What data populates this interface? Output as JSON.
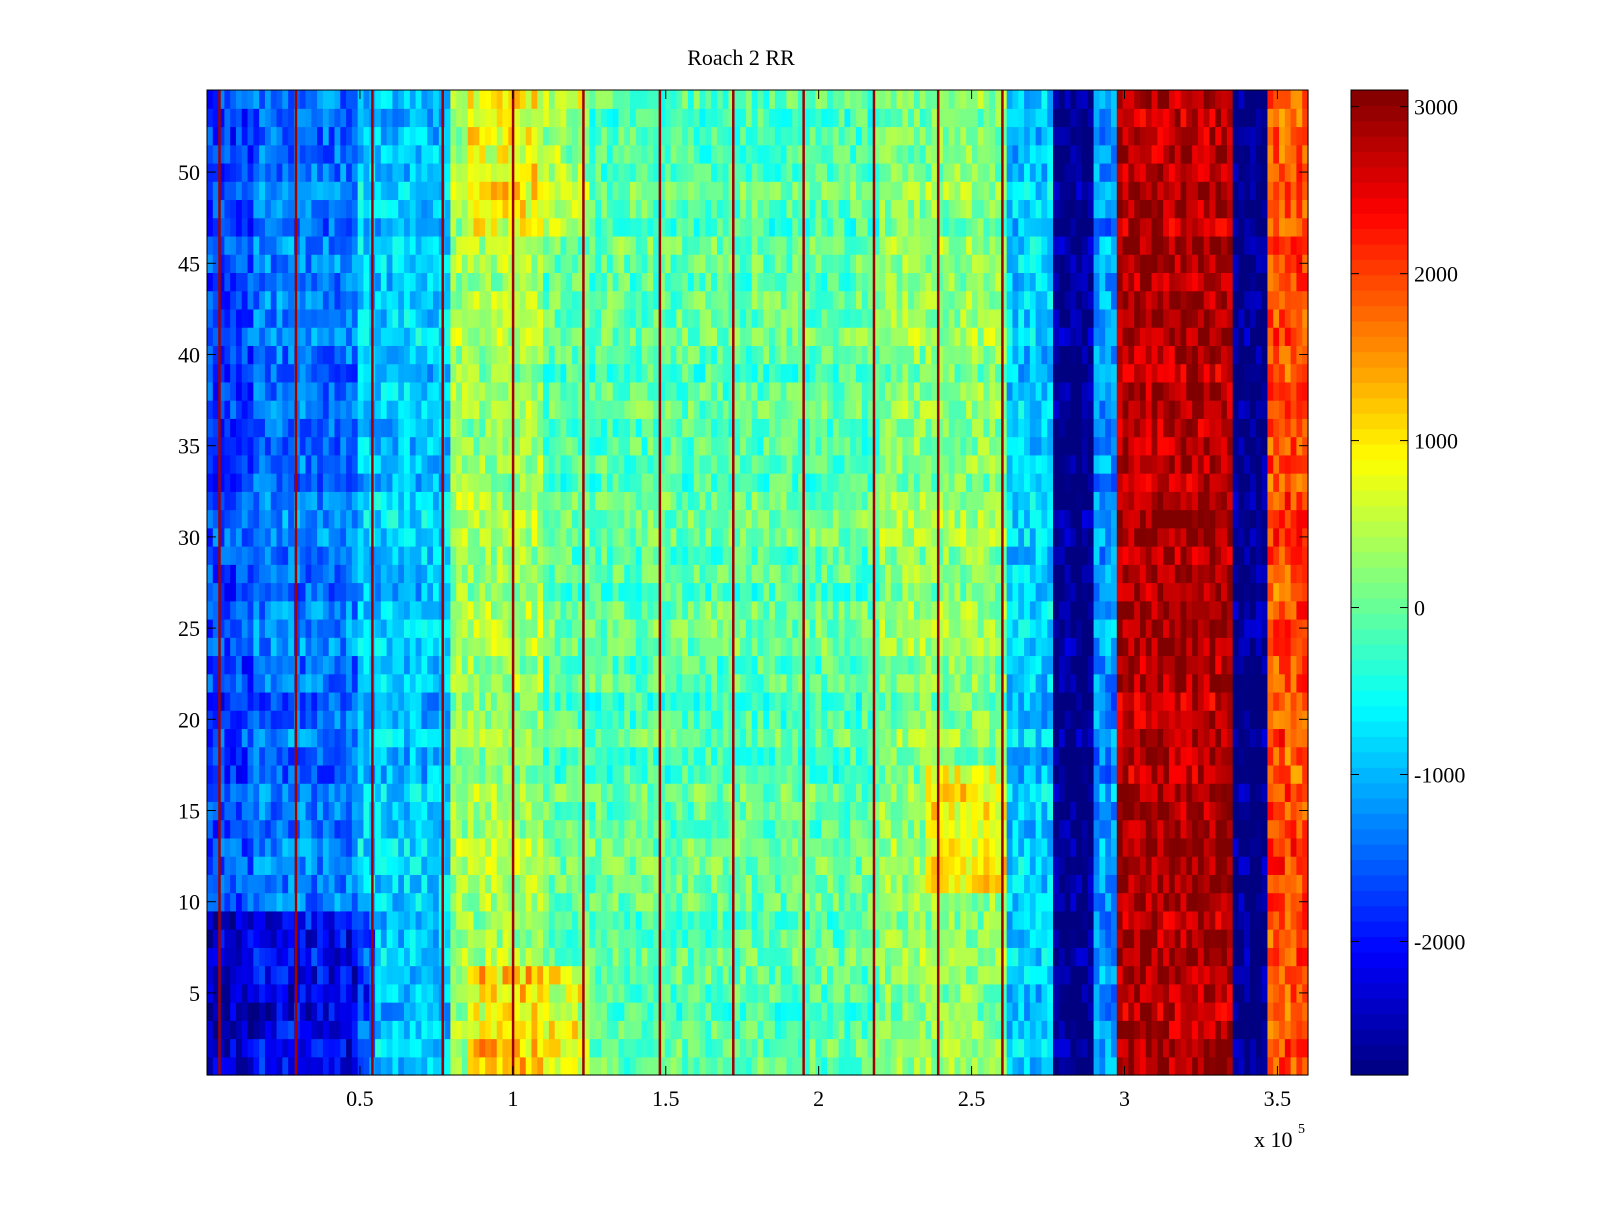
{
  "chart_data": {
    "type": "heatmap",
    "title": "Roach 2 RR",
    "xlabel": "",
    "ylabel": "",
    "x_multiplier_label": "x 10",
    "x_multiplier_exponent": "5",
    "xlim": [
      0,
      360000
    ],
    "ylim": [
      0.5,
      54.5
    ],
    "x_ticks": [
      50000,
      100000,
      150000,
      200000,
      250000,
      300000,
      350000
    ],
    "x_tick_labels": [
      "0.5",
      "1",
      "1.5",
      "2",
      "2.5",
      "3",
      "3.5"
    ],
    "y_ticks": [
      5,
      10,
      15,
      20,
      25,
      30,
      35,
      40,
      45,
      50
    ],
    "y_tick_labels": [
      "5",
      "10",
      "15",
      "20",
      "25",
      "30",
      "35",
      "40",
      "45",
      "50"
    ],
    "rows": 54,
    "colorbar": {
      "colormap": "jet",
      "clim": [
        -2800,
        3100
      ],
      "ticks": [
        -2000,
        -1000,
        0,
        1000,
        2000,
        3000
      ],
      "tick_labels": [
        "-2000",
        "-1000",
        "0",
        "1000",
        "2000",
        "3000"
      ]
    },
    "column_profile": [
      {
        "x_start": 0,
        "x_end": 15000,
        "value": -1700
      },
      {
        "x_start": 15000,
        "x_end": 50000,
        "value": -1400
      },
      {
        "x_start": 50000,
        "x_end": 80000,
        "value": -900
      },
      {
        "x_start": 80000,
        "x_end": 110000,
        "value": 300
      },
      {
        "x_start": 110000,
        "x_end": 160000,
        "value": -100
      },
      {
        "x_start": 160000,
        "x_end": 220000,
        "value": -100
      },
      {
        "x_start": 220000,
        "x_end": 262000,
        "value": 200
      },
      {
        "x_start": 262000,
        "x_end": 277000,
        "value": -900
      },
      {
        "x_start": 277000,
        "x_end": 289000,
        "value": -2800
      },
      {
        "x_start": 289000,
        "x_end": 297000,
        "value": -1200
      },
      {
        "x_start": 297000,
        "x_end": 335000,
        "value": 2800
      },
      {
        "x_start": 335000,
        "x_end": 346000,
        "value": -2800
      },
      {
        "x_start": 346000,
        "x_end": 360000,
        "value": 1900
      }
    ],
    "low_row_bands": [
      {
        "y_start": 0.5,
        "y_end": 9.5,
        "x_end": 55000,
        "offset": -800
      }
    ],
    "warm_row_bands": [
      {
        "y_start": 0.5,
        "y_end": 6,
        "x_start": 85000,
        "x_end": 125000,
        "offset": 900
      },
      {
        "y_start": 47,
        "y_end": 54.5,
        "x_start": 85000,
        "x_end": 125000,
        "offset": 700
      },
      {
        "y_start": 11,
        "y_end": 17,
        "x_start": 235000,
        "x_end": 262000,
        "offset": 700
      }
    ],
    "stripe_x": [
      4000,
      29000,
      54000,
      77000,
      100000,
      123000,
      148000,
      172000,
      195000,
      218000,
      239000,
      260000
    ]
  }
}
